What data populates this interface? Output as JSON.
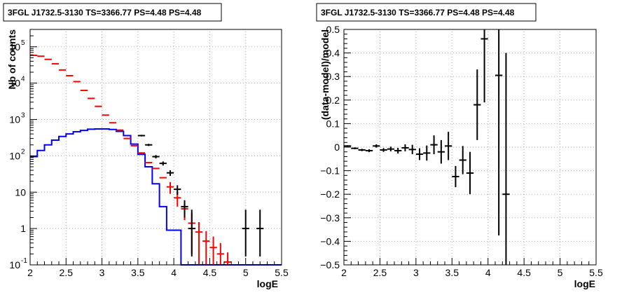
{
  "chart_data": [
    {
      "type": "step",
      "title": "3FGL J1732.5-3130 TS=3366.77 PS=4.48 PS=4.48",
      "xlabel": "logE",
      "ylabel": "Nb of counts",
      "xlim": [
        2,
        5.5
      ],
      "ylim": [
        0.1,
        300000
      ],
      "log_y": true,
      "grid": true,
      "x_ticks": [
        "2",
        "2.5",
        "3",
        "3.5",
        "4",
        "4.5",
        "5",
        "5.5"
      ],
      "y_ticks": [
        {
          "v": 0.1,
          "label": "10",
          "sup": "-1"
        },
        {
          "v": 1,
          "label": "1",
          "sup": ""
        },
        {
          "v": 10,
          "label": "10",
          "sup": ""
        },
        {
          "v": 100,
          "label": "10",
          "sup": "2"
        },
        {
          "v": 1000,
          "label": "10",
          "sup": "3"
        },
        {
          "v": 10000,
          "label": "10",
          "sup": "4"
        },
        {
          "v": 100000,
          "label": "10",
          "sup": "5"
        }
      ],
      "series": [
        {
          "color": "#0000ff",
          "style": "histogram",
          "bin_edges": [
            2.0,
            2.1,
            2.2,
            2.3,
            2.4,
            2.5,
            2.6,
            2.7,
            2.8,
            2.9,
            3.0,
            3.1,
            3.2,
            3.3,
            3.4,
            3.5,
            3.6,
            3.7,
            3.8,
            3.9,
            4.0,
            4.1,
            4.2,
            4.3,
            4.4,
            4.5,
            4.6,
            4.7,
            4.8,
            4.9,
            5.0,
            5.1,
            5.2,
            5.3,
            5.4,
            5.5
          ],
          "values": [
            95,
            140,
            200,
            270,
            340,
            400,
            460,
            500,
            540,
            550,
            550,
            530,
            470,
            360,
            210,
            110,
            50,
            17,
            4,
            0.9,
            0.9,
            0.1,
            0.1,
            0.1,
            0.1,
            0.1,
            0.1,
            0.1,
            0.1,
            0.1,
            0.1,
            0.1,
            0.1,
            0.1,
            0.1
          ]
        },
        {
          "color": "#ff0000",
          "style": "bars",
          "x": [
            2.05,
            2.15,
            2.25,
            2.35,
            2.45,
            2.55,
            2.65,
            2.75,
            2.85,
            2.95,
            3.05,
            3.15,
            3.25,
            3.35,
            3.45,
            3.55,
            3.65,
            3.75,
            3.85,
            3.95,
            4.05,
            4.15,
            4.25,
            4.35,
            4.45,
            4.55,
            4.65,
            4.75
          ],
          "y": [
            58000,
            55000,
            45000,
            34000,
            23000,
            16000,
            11000,
            6300,
            3800,
            2300,
            1320,
            810,
            510,
            300,
            190,
            120,
            65,
            45,
            25,
            14,
            7,
            3.5,
            1.4,
            0.8,
            0.45,
            0.3,
            0.2,
            0.12
          ],
          "yerr": [
            0,
            0,
            0,
            0,
            0,
            0,
            0,
            0,
            0,
            0,
            0,
            0,
            0,
            0,
            0,
            0,
            0,
            0,
            0,
            5,
            3,
            1.8,
            1.2,
            0.7,
            0.4,
            0.3,
            0.2,
            0.1
          ]
        },
        {
          "color": "#000000",
          "style": "errorbar",
          "x": [
            3.55,
            3.65,
            3.75,
            3.85,
            3.95,
            4.05,
            4.15,
            4.25,
            5.0,
            5.2
          ],
          "y": [
            360,
            200,
            95,
            62,
            34,
            12,
            4,
            1,
            1,
            1
          ],
          "yerr_lo": [
            19,
            14,
            10,
            8,
            6,
            3.5,
            2,
            0.83,
            0.83,
            0.83
          ],
          "yerr_hi": [
            19,
            14,
            10,
            8,
            6,
            3.5,
            2,
            2.3,
            2.3,
            2.3
          ]
        }
      ]
    },
    {
      "type": "scatter",
      "title": "3FGL J1732.5-3130 TS=3366.77 PS=4.48 PS=4.48",
      "xlabel": "logE",
      "ylabel": "(data-model)/model",
      "xlim": [
        2,
        5.5
      ],
      "ylim": [
        -0.5,
        0.5
      ],
      "grid": true,
      "x_ticks": [
        "2",
        "2.5",
        "3",
        "3.5",
        "4",
        "4.5",
        "5",
        "5.5"
      ],
      "y_ticks": [
        "−0.5",
        "−0.4",
        "−0.3",
        "−0.2",
        "−0.1",
        "0",
        "0.1",
        "0.2",
        "0.3",
        "0.4",
        "0.5"
      ],
      "series": [
        {
          "color": "#000000",
          "x": [
            2.05,
            2.15,
            2.25,
            2.35,
            2.45,
            2.55,
            2.65,
            2.75,
            2.85,
            2.95,
            3.05,
            3.15,
            3.25,
            3.35,
            3.45,
            3.55,
            3.65,
            3.75,
            3.85,
            3.95,
            4.15,
            4.25
          ],
          "y": [
            0.005,
            -0.005,
            -0.012,
            -0.015,
            0.005,
            -0.012,
            -0.008,
            -0.015,
            -0.003,
            -0.01,
            -0.03,
            -0.025,
            0.01,
            -0.02,
            0.005,
            -0.125,
            -0.055,
            -0.11,
            0.18,
            0.46,
            0.305,
            -0.2
          ],
          "yerr": [
            0.003,
            0.004,
            0.005,
            0.006,
            0.007,
            0.008,
            0.01,
            0.012,
            0.015,
            0.02,
            0.025,
            0.032,
            0.04,
            0.05,
            0.06,
            0.045,
            0.06,
            0.09,
            0.15,
            0.27,
            0.68,
            0.6
          ]
        }
      ]
    }
  ]
}
